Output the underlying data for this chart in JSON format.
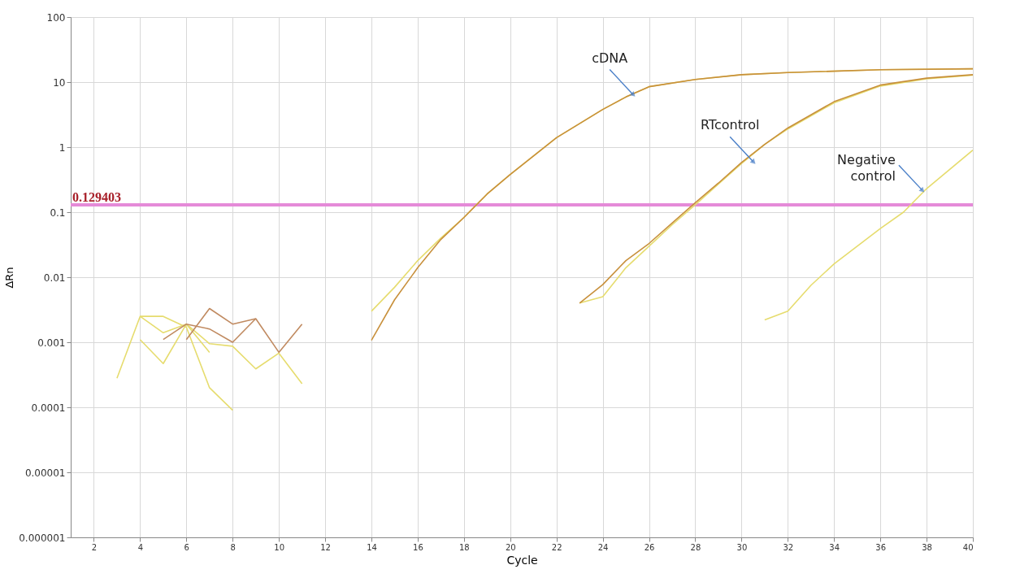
{
  "chart_data": {
    "type": "line",
    "xlabel": "Cycle",
    "ylabel": "ΔRn",
    "log": "y",
    "grid": true,
    "marker": "none",
    "line_style": "solid",
    "xlim": [
      1,
      40
    ],
    "xticks": [
      2,
      4,
      6,
      8,
      10,
      12,
      14,
      16,
      18,
      20,
      22,
      24,
      26,
      28,
      30,
      32,
      34,
      36,
      38,
      40
    ],
    "ylim": [
      1e-06,
      100
    ],
    "yticks": [
      {
        "value": 1e-06,
        "label": "0.000001"
      },
      {
        "value": 1e-05,
        "label": "0.00001"
      },
      0.0001,
      0.001,
      0.01,
      0.1,
      1,
      10,
      100
    ],
    "series": [
      {
        "color": "#e6dc6e",
        "x": [
          3,
          4,
          5,
          6,
          7,
          8
        ],
        "values": [
          0.00028,
          0.0025,
          0.0025,
          0.0017,
          0.0002,
          9e-05
        ]
      },
      {
        "color": "#e6dc6e",
        "x": [
          4,
          5,
          6,
          7,
          8,
          9,
          10,
          11
        ],
        "values": [
          0.0011,
          0.00047,
          0.0019,
          0.00095,
          0.00087,
          0.00039,
          0.00068,
          0.00023
        ]
      },
      {
        "color": "#e6dc6e",
        "x": [
          4,
          5,
          6,
          7
        ],
        "values": [
          0.0025,
          0.0014,
          0.0019,
          0.0007
        ]
      },
      {
        "color": "#c08a60",
        "x": [
          5,
          6,
          7,
          8,
          9,
          10,
          11
        ],
        "values": [
          0.0011,
          0.0019,
          0.0016,
          0.001,
          0.0023,
          0.0007,
          0.0019
        ]
      },
      {
        "color": "#c08a60",
        "x": [
          6,
          7,
          8,
          9
        ],
        "values": [
          0.0011,
          0.0033,
          0.0019,
          0.0023
        ]
      },
      {
        "color": "#e6dc6e",
        "x": [
          14,
          15,
          16,
          17,
          18,
          19,
          20,
          22,
          24,
          25,
          26,
          28,
          30,
          32,
          36,
          40
        ],
        "values": [
          0.003,
          0.007,
          0.018,
          0.04,
          0.083,
          0.19,
          0.38,
          1.4,
          3.8,
          5.9,
          8.5,
          11,
          13,
          14,
          15.5,
          16
        ]
      },
      {
        "color": "#c8903c",
        "x": [
          14,
          15,
          16,
          17,
          18,
          19,
          20,
          22,
          24,
          25,
          26,
          28,
          30,
          32,
          36,
          40
        ],
        "values": [
          0.00107,
          0.0045,
          0.014,
          0.038,
          0.083,
          0.19,
          0.38,
          1.4,
          3.8,
          5.9,
          8.5,
          11,
          13,
          14,
          15.5,
          16
        ]
      },
      {
        "color": "#e6dc6e",
        "x": [
          23,
          24,
          25,
          26,
          27,
          28,
          29,
          30,
          31,
          32,
          34,
          36,
          38,
          40
        ],
        "values": [
          0.004,
          0.005,
          0.014,
          0.03,
          0.064,
          0.13,
          0.27,
          0.56,
          1.1,
          1.9,
          4.8,
          8.7,
          11.2,
          12.8
        ]
      },
      {
        "color": "#c8903c",
        "x": [
          23,
          24,
          25,
          26,
          27,
          28,
          29,
          30,
          31,
          32,
          34,
          36,
          38,
          40
        ],
        "values": [
          0.004,
          0.0077,
          0.018,
          0.033,
          0.068,
          0.14,
          0.28,
          0.58,
          1.1,
          1.97,
          5,
          9,
          11.5,
          13
        ]
      },
      {
        "color": "#e6dc6e",
        "x": [
          31,
          32,
          33,
          34,
          36,
          37,
          38,
          40
        ],
        "values": [
          0.0022,
          0.003,
          0.0075,
          0.016,
          0.056,
          0.1,
          0.23,
          0.9
        ]
      }
    ],
    "ref_lines": [
      {
        "axis": "y",
        "value": 0.129403,
        "label": "0.129403",
        "color": "#e58ad8"
      }
    ],
    "annotations": [
      {
        "text": "cDNA",
        "x": 25.3,
        "y": 6.5
      },
      {
        "text": "RTcontrol",
        "x": 30.5,
        "y": 0.6
      },
      {
        "text": "Negative control",
        "x": 37.8,
        "y": 0.22
      }
    ]
  }
}
